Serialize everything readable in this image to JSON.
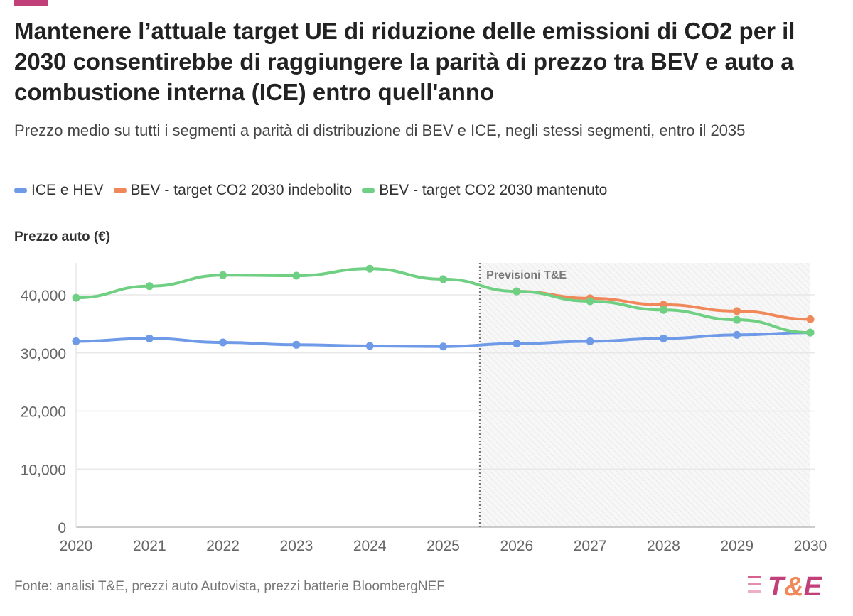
{
  "title": "Mantenere l’attuale target UE di riduzione delle emissioni di CO2 per il 2030 consentirebbe di raggiungere la parità di prezzo tra BEV e auto a combustione interna (ICE) entro quell'anno",
  "subtitle": "Prezzo medio su tutti i segmenti a parità di distribuzione di BEV e ICE, negli stessi segmenti, entro il 2035",
  "source": "Fonte: analisi T&E, prezzi auto Autovista, prezzi batterie BloombergNEF",
  "logo_text": "T&E",
  "chart_data": {
    "type": "line",
    "ylabel": "Prezzo auto (€)",
    "ylim": [
      0,
      45000
    ],
    "yticks": [
      "0",
      "10,000",
      "20,000",
      "30,000",
      "40,000"
    ],
    "ytick_values": [
      0,
      10000,
      20000,
      30000,
      40000
    ],
    "categories": [
      "2020",
      "2021",
      "2022",
      "2023",
      "2024",
      "2025",
      "2026",
      "2027",
      "2028",
      "2029",
      "2030"
    ],
    "annotation": {
      "label": "Previsioni T&E",
      "from_x": 2025.5,
      "to_x": 2030
    },
    "legend_position": "top-left",
    "grid": true,
    "series": [
      {
        "name": "ICE e HEV",
        "color": "#6f9ae8",
        "values": [
          32000,
          32500,
          31800,
          31400,
          31200,
          31100,
          31600,
          32000,
          32500,
          33100,
          33500
        ]
      },
      {
        "name": "BEV - target CO2 2030 indebolito",
        "color": "#f0885a",
        "values": [
          null,
          null,
          null,
          null,
          null,
          null,
          40600,
          39400,
          38300,
          37200,
          35800
        ]
      },
      {
        "name": "BEV - target CO2 2030 mantenuto",
        "color": "#6fcf82",
        "values": [
          39500,
          41500,
          43400,
          43300,
          44500,
          42700,
          40600,
          38900,
          37400,
          35700,
          33500
        ]
      }
    ]
  }
}
